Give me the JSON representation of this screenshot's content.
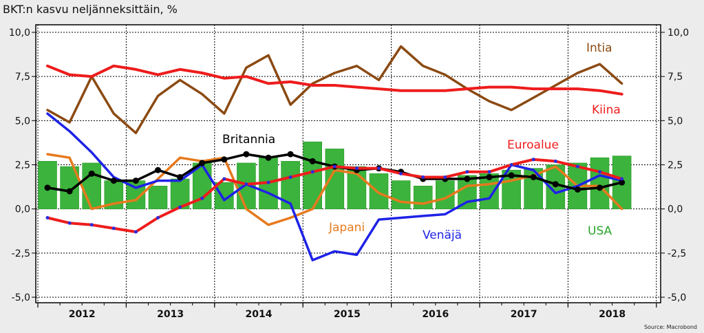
{
  "title": "BKT:n kasvu neljänneksittäin, %",
  "source": "Source: Macrobond",
  "chart_data": {
    "type": "line",
    "title": "BKT:n kasvu neljänneksittäin, %",
    "xlabel": "",
    "ylabel": "",
    "ylim": [
      -5,
      10
    ],
    "yticks": [
      "10,0",
      "7,5",
      "5,0",
      "2,5",
      "0,0",
      "-2,5",
      "-5,0"
    ],
    "ytick_values": [
      10,
      7.5,
      5,
      2.5,
      0,
      -2.5,
      -5
    ],
    "years": [
      "2012",
      "2013",
      "2014",
      "2015",
      "2016",
      "2017",
      "2018"
    ],
    "x": [
      "2012 Q1",
      "2012 Q2",
      "2012 Q3",
      "2012 Q4",
      "2013 Q1",
      "2013 Q2",
      "2013 Q3",
      "2013 Q4",
      "2014 Q1",
      "2014 Q2",
      "2014 Q3",
      "2014 Q4",
      "2015 Q1",
      "2015 Q2",
      "2015 Q3",
      "2015 Q4",
      "2016 Q1",
      "2016 Q2",
      "2016 Q3",
      "2016 Q4",
      "2017 Q1",
      "2017 Q2",
      "2017 Q3",
      "2017 Q4",
      "2018 Q1",
      "2018 Q2",
      "2018 Q3"
    ],
    "bar_series": {
      "name": "USA",
      "color": "#3cb33c",
      "values": [
        2.7,
        2.4,
        2.6,
        1.6,
        1.6,
        1.3,
        1.7,
        2.6,
        1.5,
        2.6,
        2.9,
        2.7,
        3.8,
        3.4,
        2.4,
        2.0,
        1.6,
        1.3,
        1.6,
        1.9,
        2.0,
        2.2,
        2.3,
        2.5,
        2.6,
        2.9,
        3.0
      ]
    },
    "series": [
      {
        "name": "Intia",
        "color": "#8b4a12",
        "values": [
          5.6,
          4.9,
          7.5,
          5.4,
          4.3,
          6.4,
          7.3,
          6.5,
          5.4,
          8.0,
          8.7,
          5.9,
          7.1,
          7.7,
          8.1,
          7.3,
          9.2,
          8.1,
          7.6,
          6.8,
          6.1,
          5.6,
          6.3,
          7.0,
          7.7,
          8.2,
          7.1
        ]
      },
      {
        "name": "Kiina",
        "color": "#ee1c1c",
        "values": [
          8.1,
          7.6,
          7.5,
          8.1,
          7.9,
          7.6,
          7.9,
          7.7,
          7.4,
          7.5,
          7.1,
          7.2,
          7.0,
          7.0,
          6.9,
          6.8,
          6.7,
          6.7,
          6.7,
          6.8,
          6.9,
          6.9,
          6.8,
          6.8,
          6.8,
          6.7,
          6.5
        ]
      },
      {
        "name": "Britannia",
        "color": "#000000",
        "values": [
          1.2,
          1.0,
          2.0,
          1.6,
          1.6,
          2.2,
          1.8,
          2.6,
          2.8,
          3.1,
          2.9,
          3.1,
          2.7,
          2.4,
          2.2,
          2.3,
          2.1,
          1.7,
          1.7,
          1.7,
          1.8,
          1.9,
          1.8,
          1.4,
          1.1,
          1.2,
          1.5
        ]
      },
      {
        "name": "Euroalue",
        "color": "#ee1c1c",
        "marker_color": "#2b2bdd",
        "values": [
          -0.5,
          -0.8,
          -0.9,
          -1.1,
          -1.3,
          -0.5,
          0.1,
          0.6,
          1.7,
          1.4,
          1.5,
          1.8,
          2.1,
          2.4,
          2.3,
          2.3,
          2.0,
          1.8,
          1.8,
          2.1,
          2.1,
          2.5,
          2.8,
          2.7,
          2.4,
          2.1,
          1.7
        ]
      },
      {
        "name": "Venäjä",
        "color": "#1e22e6",
        "values": [
          5.4,
          4.4,
          3.2,
          1.8,
          1.2,
          1.6,
          1.6,
          2.5,
          0.5,
          1.4,
          0.9,
          0.3,
          -2.9,
          -2.4,
          -2.6,
          -0.6,
          -0.5,
          -0.4,
          -0.3,
          0.4,
          0.6,
          2.5,
          2.2,
          0.9,
          1.3,
          1.9,
          1.6
        ]
      },
      {
        "name": "Japani",
        "color": "#e67a1e",
        "values": [
          3.1,
          2.9,
          0.0,
          0.3,
          0.5,
          1.7,
          2.9,
          2.7,
          2.9,
          0.0,
          -0.9,
          -0.5,
          0.0,
          2.2,
          2.0,
          0.9,
          0.4,
          0.3,
          0.6,
          1.3,
          1.4,
          1.6,
          1.9,
          2.4,
          1.3,
          1.3,
          0.0
        ]
      }
    ]
  }
}
